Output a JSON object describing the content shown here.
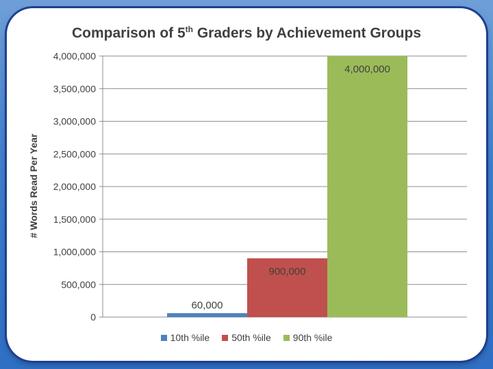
{
  "chart_data": {
    "type": "bar",
    "title": "Comparison of 5",
    "title_superscript": "th",
    "title_rest": " Graders by Achievement Groups",
    "xlabel": "",
    "ylabel": "# Words Read Per Year",
    "ylim": [
      0,
      4000000
    ],
    "y_ticks": [
      0,
      500000,
      1000000,
      1500000,
      2000000,
      2500000,
      3000000,
      3500000,
      4000000
    ],
    "y_tick_labels": [
      "0",
      "500,000",
      "1,000,000",
      "1,500,000",
      "2,000,000",
      "2,500,000",
      "3,000,000",
      "3,500,000",
      "4,000,000"
    ],
    "grid": true,
    "legend_position": "bottom",
    "series": [
      {
        "name": "10th %ile",
        "value": 60000,
        "label": "60,000",
        "color": "#4f81bd"
      },
      {
        "name": "50th %ile",
        "value": 900000,
        "label": "900,000",
        "color": "#c0504d"
      },
      {
        "name": "90th %ile",
        "value": 4000000,
        "label": "4,000,000",
        "color": "#9bbb59"
      }
    ]
  }
}
